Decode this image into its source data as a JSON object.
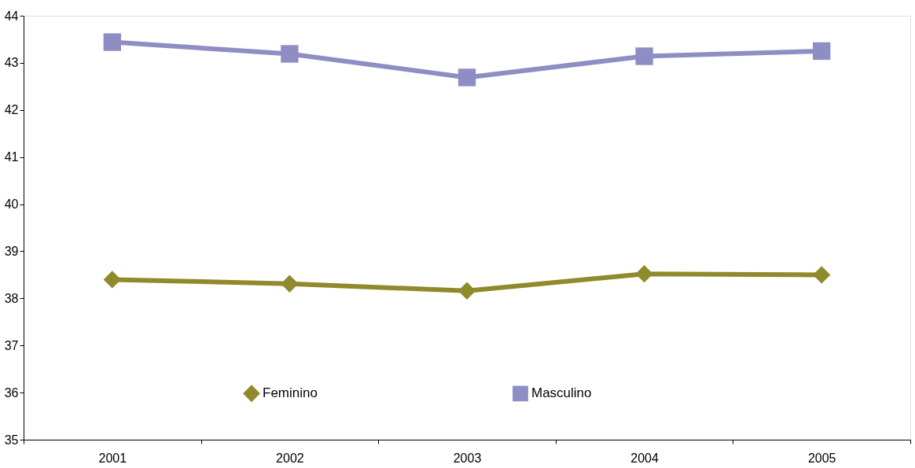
{
  "chart_data": {
    "type": "line",
    "categories": [
      "2001",
      "2002",
      "2003",
      "2004",
      "2005"
    ],
    "series": [
      {
        "name": "Feminino",
        "color": "#8f8a2c",
        "marker": "diamond",
        "values": [
          38.4,
          38.31,
          38.16,
          38.52,
          38.5
        ]
      },
      {
        "name": "Masculino",
        "color": "#8f8ec4",
        "marker": "square",
        "values": [
          43.44,
          43.19,
          42.69,
          43.14,
          43.25
        ]
      }
    ],
    "ylim": [
      35,
      44
    ],
    "yticks": [
      35,
      36,
      37,
      38,
      39,
      40,
      41,
      42,
      43,
      44
    ],
    "grid": false,
    "legend": "bottom",
    "line_style": "solid"
  }
}
